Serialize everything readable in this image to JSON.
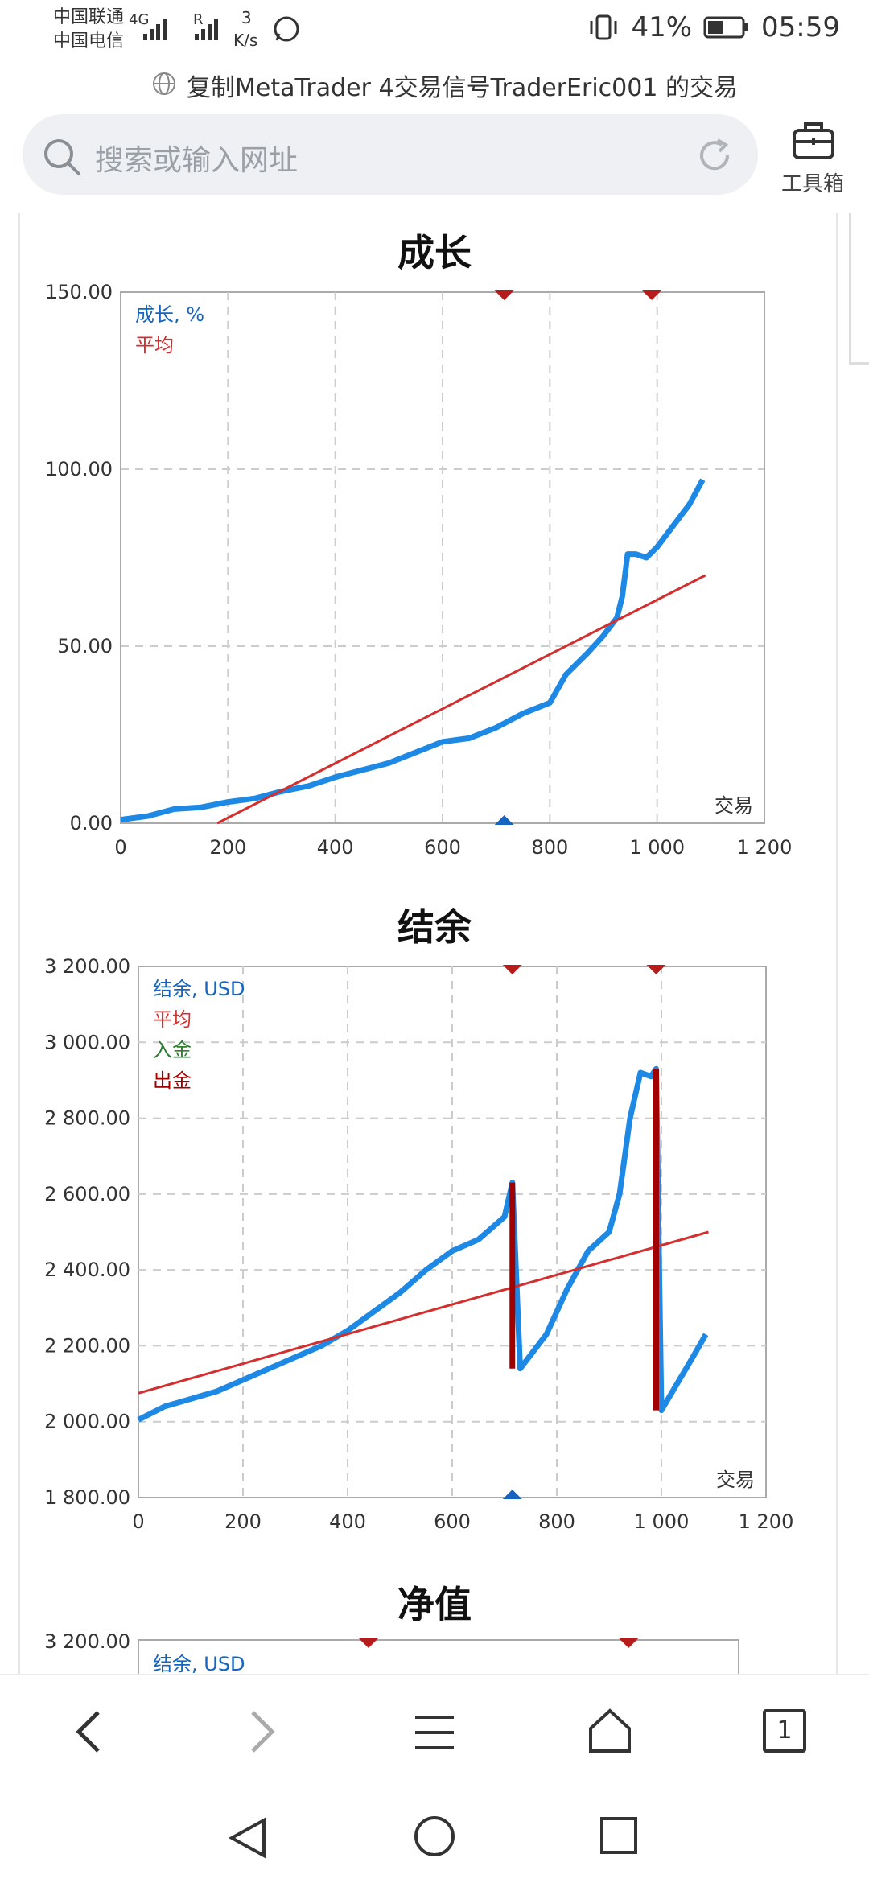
{
  "status": {
    "carrier1": "中国联通",
    "carrier2": "中国电信",
    "net1": "4G",
    "net2": "R",
    "speed_value": "3",
    "speed_unit": "K/s",
    "battery": "41%",
    "time": "05:59"
  },
  "browser": {
    "page_title": "复制MetaTrader 4交易信号TraderEric001 的交易",
    "search_placeholder": "搜索或输入网址",
    "toolbox_label": "工具箱",
    "tab_count": "1"
  },
  "charts": {
    "growth_title": "成长",
    "balance_title": "结余",
    "equity_title": "净值"
  },
  "chart_data": [
    {
      "type": "line",
      "title": "成长",
      "xlabel": "交易",
      "x_ticks": [
        "0",
        "200",
        "400",
        "600",
        "800",
        "1 000",
        "1 200"
      ],
      "y_ticks": [
        "0.00",
        "50.00",
        "100.00",
        "150.00"
      ],
      "xlim": [
        0,
        1200
      ],
      "ylim": [
        0,
        150
      ],
      "legend": [
        "成长, %",
        "平均"
      ],
      "grid": true,
      "series": [
        {
          "name": "成长, %",
          "color": "#1e88e5",
          "x": [
            0,
            50,
            100,
            150,
            200,
            250,
            300,
            350,
            400,
            450,
            500,
            550,
            600,
            650,
            700,
            750,
            800,
            830,
            870,
            900,
            925,
            935,
            945,
            960,
            980,
            1000,
            1030,
            1060,
            1085
          ],
          "y": [
            1,
            2,
            4,
            4.5,
            6,
            7,
            9,
            10.5,
            13,
            15,
            17,
            20,
            23,
            24,
            27,
            31,
            34,
            42,
            48,
            53,
            58,
            64,
            76,
            76,
            75,
            78,
            84,
            90,
            97
          ]
        },
        {
          "name": "平均",
          "color": "#d32f2f",
          "x": [
            180,
            1090
          ],
          "y": [
            0,
            70
          ]
        }
      ],
      "markers_top": [
        715,
        990
      ],
      "markers_bottom": [
        715
      ]
    },
    {
      "type": "line",
      "title": "结余",
      "xlabel": "交易",
      "x_ticks": [
        "0",
        "200",
        "400",
        "600",
        "800",
        "1 000",
        "1 200"
      ],
      "y_ticks": [
        "1 800.00",
        "2 000.00",
        "2 200.00",
        "2 400.00",
        "2 600.00",
        "2 800.00",
        "3 000.00",
        "3 200.00"
      ],
      "xlim": [
        0,
        1200
      ],
      "ylim": [
        1800,
        3200
      ],
      "legend": [
        "结余, USD",
        "平均",
        "入金",
        "出金"
      ],
      "grid": true,
      "series": [
        {
          "name": "结余, USD",
          "color": "#1e88e5",
          "x": [
            0,
            50,
            100,
            150,
            200,
            250,
            300,
            350,
            400,
            450,
            500,
            550,
            600,
            650,
            700,
            715,
            730,
            780,
            820,
            860,
            900,
            920,
            940,
            960,
            980,
            990,
            1000,
            1030,
            1060,
            1085
          ],
          "y": [
            2005,
            2040,
            2060,
            2080,
            2110,
            2140,
            2170,
            2200,
            2240,
            2290,
            2340,
            2400,
            2450,
            2480,
            2540,
            2630,
            2140,
            2230,
            2350,
            2450,
            2500,
            2600,
            2800,
            2920,
            2910,
            2930,
            2030,
            2100,
            2170,
            2230
          ]
        },
        {
          "name": "平均",
          "color": "#d32f2f",
          "x": [
            0,
            1090
          ],
          "y": [
            2075,
            2500
          ]
        },
        {
          "name": "出金",
          "color": "#a00000",
          "segments": [
            [
              715,
              2630,
              715,
              2140
            ],
            [
              990,
              2930,
              990,
              2030
            ]
          ]
        }
      ],
      "markers_top": [
        715,
        990
      ],
      "markers_bottom": [
        715
      ]
    },
    {
      "type": "line",
      "title": "净值",
      "y_ticks": [
        "3 200.00"
      ],
      "legend": [
        "结余, USD"
      ],
      "markers_top": [
        460,
        980
      ]
    }
  ]
}
